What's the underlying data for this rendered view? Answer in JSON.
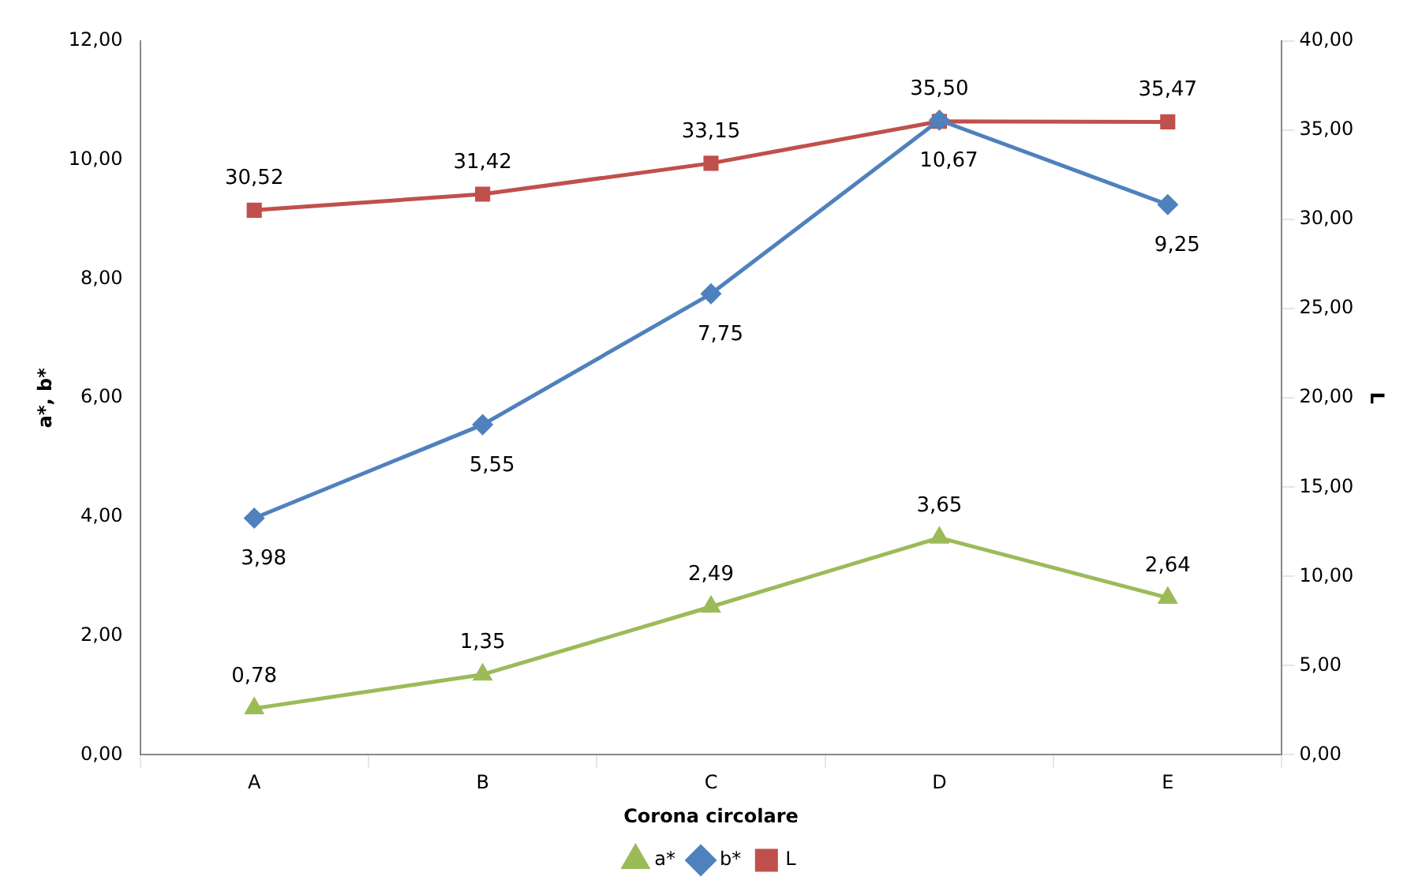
{
  "chart_data": {
    "type": "line",
    "xlabel": "Corona circolare",
    "ylabel": "a*, b*",
    "y2label": "L",
    "categories": [
      "A",
      "B",
      "C",
      "D",
      "E"
    ],
    "ylim": [
      0,
      12
    ],
    "yticks": [
      {
        "value": 0,
        "label": "0,00"
      },
      {
        "value": 2,
        "label": "2,00"
      },
      {
        "value": 4,
        "label": "4,00"
      },
      {
        "value": 6,
        "label": "6,00"
      },
      {
        "value": 8,
        "label": "8,00"
      },
      {
        "value": 10,
        "label": "10,00"
      },
      {
        "value": 12,
        "label": "12,00"
      }
    ],
    "y2lim": [
      0,
      40
    ],
    "y2ticks": [
      {
        "value": 0,
        "label": "0,00"
      },
      {
        "value": 5,
        "label": "5,00"
      },
      {
        "value": 10,
        "label": "10,00"
      },
      {
        "value": 15,
        "label": "15,00"
      },
      {
        "value": 20,
        "label": "20,00"
      },
      {
        "value": 25,
        "label": "25,00"
      },
      {
        "value": 30,
        "label": "30,00"
      },
      {
        "value": 35,
        "label": "35,00"
      },
      {
        "value": 40,
        "label": "40,00"
      }
    ],
    "grid": false,
    "legend": "bottom",
    "line_style": "solid",
    "series": [
      {
        "name": "a*",
        "color": "#9bbb59",
        "marker": "triangle",
        "values": [
          0.78,
          1.35,
          2.49,
          3.65,
          2.64
        ],
        "value_labels": [
          "0,78",
          "1,35",
          "2,49",
          "3,65",
          "2,64"
        ]
      },
      {
        "name": "b*",
        "color": "#4f81bd",
        "marker": "diamond",
        "values": [
          3.98,
          5.55,
          7.75,
          10.67,
          9.25
        ],
        "value_labels": [
          "3,98",
          "5,55",
          "7,75",
          "10,67",
          "9,25"
        ]
      },
      {
        "name": "L",
        "color": "#c0504d",
        "marker": "square",
        "axis": "y2",
        "values": [
          30.52,
          31.42,
          33.15,
          35.5,
          35.47
        ],
        "value_labels": [
          "30,52",
          "31,42",
          "33,15",
          "35,50",
          "35,47"
        ]
      }
    ]
  }
}
